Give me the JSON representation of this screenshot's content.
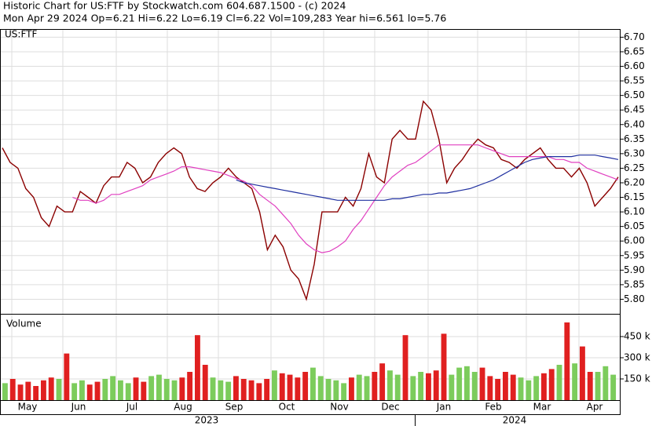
{
  "header": {
    "title": "Historic Chart for US:FTF by Stockwatch.com 604.687.1500 - (c) 2024",
    "subtitle": "Mon Apr 29 2024  Op=6.21  Hi=6.22  Lo=6.19  Cl=6.22  Vol=109,283  Year hi=6.561  lo=5.76"
  },
  "x_axis": {
    "months": [
      "May",
      "Jun",
      "Jul",
      "Aug",
      "Sep",
      "Oct",
      "Nov",
      "Dec",
      "Jan",
      "Feb",
      "Mar",
      "Apr"
    ],
    "years": [
      "2023",
      "2024"
    ]
  },
  "chart_data": [
    {
      "type": "line",
      "label": "US:FTF",
      "grid": true,
      "ylim": [
        5.75,
        6.72
      ],
      "yticks": [
        {
          "value": 5.8,
          "label": "5.80"
        },
        {
          "value": 5.85,
          "label": "5.85"
        },
        {
          "value": 5.9,
          "label": "5.90"
        },
        {
          "value": 5.95,
          "label": "5.95"
        },
        {
          "value": 6.0,
          "label": "6.00"
        },
        {
          "value": 6.05,
          "label": "6.05"
        },
        {
          "value": 6.1,
          "label": "6.10"
        },
        {
          "value": 6.15,
          "label": "6.15"
        },
        {
          "value": 6.2,
          "label": "6.20"
        },
        {
          "value": 6.25,
          "label": "6.25"
        },
        {
          "value": 6.3,
          "label": "6.30"
        },
        {
          "value": 6.35,
          "label": "6.35"
        },
        {
          "value": 6.4,
          "label": "6.40"
        },
        {
          "value": 6.45,
          "label": "6.45"
        },
        {
          "value": 6.5,
          "label": "6.50"
        },
        {
          "value": 6.55,
          "label": "6.55"
        },
        {
          "value": 6.6,
          "label": "6.60"
        },
        {
          "value": 6.65,
          "label": "6.65"
        },
        {
          "value": 6.7,
          "label": "6.70"
        }
      ],
      "series": [
        {
          "color": "#8b0000",
          "values": [
            6.32,
            6.27,
            6.25,
            6.18,
            6.15,
            6.08,
            6.05,
            6.12,
            6.1,
            6.1,
            6.17,
            6.15,
            6.13,
            6.19,
            6.22,
            6.22,
            6.27,
            6.25,
            6.2,
            6.22,
            6.27,
            6.3,
            6.32,
            6.3,
            6.22,
            6.18,
            6.17,
            6.2,
            6.22,
            6.25,
            6.22,
            6.2,
            6.18,
            6.1,
            5.97,
            6.02,
            5.98,
            5.9,
            5.87,
            5.8,
            5.92,
            6.1,
            6.1,
            6.1,
            6.15,
            6.12,
            6.18,
            6.3,
            6.22,
            6.2,
            6.35,
            6.38,
            6.35,
            6.35,
            6.48,
            6.45,
            6.35,
            6.2,
            6.25,
            6.28,
            6.32,
            6.35,
            6.33,
            6.32,
            6.28,
            6.27,
            6.25,
            6.28,
            6.3,
            6.32,
            6.28,
            6.25,
            6.25,
            6.22,
            6.25,
            6.2,
            6.12,
            6.15,
            6.18,
            6.22
          ]
        },
        {
          "color": "#e040c0",
          "values": [
            null,
            null,
            null,
            null,
            null,
            null,
            null,
            null,
            null,
            6.15,
            6.14,
            6.14,
            6.13,
            6.14,
            6.16,
            6.16,
            6.17,
            6.18,
            6.19,
            6.21,
            6.22,
            6.23,
            6.24,
            6.255,
            6.255,
            6.25,
            6.245,
            6.24,
            6.235,
            6.225,
            6.215,
            6.205,
            6.19,
            6.16,
            6.14,
            6.12,
            6.09,
            6.06,
            6.02,
            5.99,
            5.97,
            5.96,
            5.965,
            5.98,
            6.0,
            6.04,
            6.07,
            6.11,
            6.15,
            6.19,
            6.22,
            6.24,
            6.26,
            6.27,
            6.29,
            6.31,
            6.33,
            6.33,
            6.33,
            6.33,
            6.33,
            6.33,
            6.32,
            6.31,
            6.3,
            6.29,
            6.29,
            6.29,
            6.29,
            6.29,
            6.29,
            6.28,
            6.28,
            6.27,
            6.27,
            6.25,
            6.24,
            6.23,
            6.22,
            6.21
          ]
        },
        {
          "color": "#2030a0",
          "values": [
            null,
            null,
            null,
            null,
            null,
            null,
            null,
            null,
            null,
            null,
            null,
            null,
            null,
            null,
            null,
            null,
            null,
            null,
            null,
            null,
            null,
            null,
            null,
            null,
            null,
            null,
            null,
            null,
            null,
            null,
            6.21,
            6.2,
            6.195,
            6.19,
            6.185,
            6.18,
            6.175,
            6.17,
            6.165,
            6.16,
            6.155,
            6.15,
            6.145,
            6.14,
            6.14,
            6.14,
            6.14,
            6.14,
            6.14,
            6.14,
            6.145,
            6.145,
            6.15,
            6.155,
            6.16,
            6.16,
            6.165,
            6.165,
            6.17,
            6.175,
            6.18,
            6.19,
            6.2,
            6.21,
            6.225,
            6.24,
            6.255,
            6.27,
            6.28,
            6.285,
            6.29,
            6.29,
            6.29,
            6.29,
            6.295,
            6.295,
            6.295,
            6.29,
            6.285,
            6.28
          ]
        }
      ]
    },
    {
      "type": "bar",
      "title": "Volume",
      "grid": true,
      "ylim": [
        0,
        600000
      ],
      "up_color": "#7ccc5c",
      "down_color": "#e02020",
      "yticks": [
        {
          "value": 150000,
          "label": "150 k"
        },
        {
          "value": 300000,
          "label": "300 k"
        },
        {
          "value": 450000,
          "label": "450 k"
        }
      ],
      "values": [
        120000,
        150000,
        110000,
        130000,
        100000,
        140000,
        160000,
        150000,
        330000,
        120000,
        140000,
        110000,
        130000,
        150000,
        170000,
        140000,
        120000,
        160000,
        130000,
        170000,
        180000,
        150000,
        140000,
        160000,
        200000,
        460000,
        250000,
        160000,
        140000,
        130000,
        170000,
        150000,
        140000,
        120000,
        150000,
        210000,
        190000,
        180000,
        160000,
        200000,
        230000,
        170000,
        150000,
        140000,
        120000,
        160000,
        180000,
        170000,
        200000,
        260000,
        210000,
        180000,
        460000,
        170000,
        200000,
        190000,
        210000,
        470000,
        180000,
        230000,
        240000,
        200000,
        230000,
        170000,
        150000,
        200000,
        180000,
        160000,
        140000,
        170000,
        190000,
        220000,
        250000,
        550000,
        260000,
        380000,
        200000,
        200000,
        240000,
        180000
      ]
    }
  ]
}
